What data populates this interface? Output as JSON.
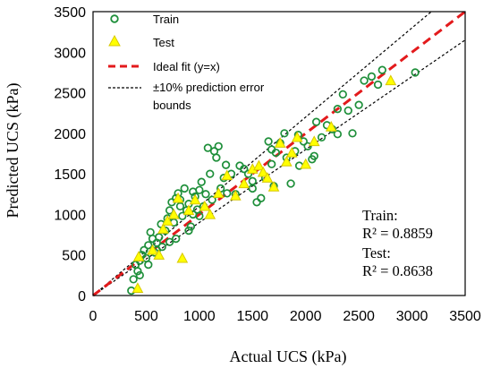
{
  "chart_data": {
    "type": "scatter",
    "xlabel": "Actual UCS (kPa)",
    "ylabel": "Predicted UCS (kPa)",
    "xlim": [
      0,
      3500
    ],
    "ylim": [
      0,
      3500
    ],
    "x_ticks": [
      0,
      500,
      1000,
      1500,
      2000,
      2500,
      3000,
      3500
    ],
    "y_ticks": [
      0,
      500,
      1000,
      1500,
      2000,
      2500,
      3000,
      3500
    ],
    "grid": false,
    "legend_position": "top-left",
    "colors": {
      "train": "#1e8f3a",
      "test_fill": "#ffff00",
      "test_edge": "#d8c800",
      "ideal": "#e31a1c",
      "bounds": "#000000"
    },
    "legend": {
      "train": "Train",
      "test": "Test",
      "ideal": "Ideal fit (y=x)",
      "bounds_line1": "±10% prediction error",
      "bounds_line2": "bounds"
    },
    "annotations": {
      "train_label": "Train:",
      "train_r2": "R² = 0.8859",
      "test_label": "Test:",
      "test_r2": "R² = 0.8638"
    },
    "reference_lines": [
      {
        "label": "Ideal fit (y=x)",
        "slope": 1.0
      },
      {
        "label": "+10%",
        "slope": 1.1
      },
      {
        "label": "-10%",
        "slope": 0.9
      }
    ],
    "series": [
      {
        "name": "Train",
        "marker": "circle",
        "points": [
          [
            360,
            60
          ],
          [
            380,
            200
          ],
          [
            400,
            380
          ],
          [
            420,
            300
          ],
          [
            440,
            430
          ],
          [
            460,
            500
          ],
          [
            480,
            560
          ],
          [
            500,
            460
          ],
          [
            520,
            620
          ],
          [
            540,
            780
          ],
          [
            560,
            700
          ],
          [
            580,
            530
          ],
          [
            600,
            650
          ],
          [
            620,
            720
          ],
          [
            640,
            880
          ],
          [
            650,
            600
          ],
          [
            680,
            800
          ],
          [
            700,
            950
          ],
          [
            720,
            1050
          ],
          [
            740,
            1150
          ],
          [
            760,
            900
          ],
          [
            780,
            1200
          ],
          [
            800,
            1260
          ],
          [
            820,
            1100
          ],
          [
            840,
            980
          ],
          [
            860,
            1320
          ],
          [
            880,
            1050
          ],
          [
            900,
            800
          ],
          [
            920,
            850
          ],
          [
            940,
            1000
          ],
          [
            960,
            1220
          ],
          [
            980,
            1060
          ],
          [
            1000,
            1300
          ],
          [
            1020,
            1400
          ],
          [
            1040,
            1100
          ],
          [
            1060,
            1250
          ],
          [
            1080,
            1820
          ],
          [
            1100,
            1500
          ],
          [
            1120,
            1180
          ],
          [
            1140,
            1780
          ],
          [
            1160,
            1700
          ],
          [
            1180,
            1840
          ],
          [
            1200,
            1320
          ],
          [
            1230,
            1450
          ],
          [
            1260,
            1260
          ],
          [
            1300,
            1500
          ],
          [
            1340,
            1250
          ],
          [
            1380,
            1600
          ],
          [
            1420,
            1560
          ],
          [
            1460,
            1500
          ],
          [
            1500,
            1320
          ],
          [
            1540,
            1150
          ],
          [
            1580,
            1200
          ],
          [
            1620,
            1450
          ],
          [
            1650,
            1900
          ],
          [
            1680,
            1620
          ],
          [
            1700,
            1350
          ],
          [
            1720,
            1760
          ],
          [
            1760,
            1880
          ],
          [
            1800,
            2000
          ],
          [
            1820,
            1700
          ],
          [
            1860,
            1380
          ],
          [
            1900,
            1780
          ],
          [
            1940,
            1600
          ],
          [
            1980,
            1900
          ],
          [
            2020,
            1840
          ],
          [
            2060,
            1680
          ],
          [
            2100,
            2140
          ],
          [
            2150,
            1950
          ],
          [
            2200,
            2100
          ],
          [
            2250,
            2050
          ],
          [
            2300,
            1990
          ],
          [
            2350,
            2480
          ],
          [
            2400,
            2280
          ],
          [
            2440,
            2000
          ],
          [
            2500,
            2350
          ],
          [
            2550,
            2650
          ],
          [
            2620,
            2700
          ],
          [
            2680,
            2600
          ],
          [
            2720,
            2780
          ],
          [
            3030,
            2750
          ],
          [
            900,
            1130
          ],
          [
            940,
            1280
          ],
          [
            1000,
            980
          ],
          [
            600,
            560
          ],
          [
            720,
            660
          ],
          [
            780,
            700
          ],
          [
            820,
            1180
          ],
          [
            1250,
            1610
          ],
          [
            1500,
            1410
          ],
          [
            1680,
            1800
          ],
          [
            1930,
            1980
          ],
          [
            2080,
            1720
          ],
          [
            2300,
            2300
          ],
          [
            440,
            250
          ],
          [
            520,
            380
          ]
        ]
      },
      {
        "name": "Test",
        "marker": "triangle",
        "points": [
          [
            420,
            90
          ],
          [
            430,
            480
          ],
          [
            560,
            560
          ],
          [
            620,
            500
          ],
          [
            660,
            820
          ],
          [
            700,
            920
          ],
          [
            760,
            1000
          ],
          [
            800,
            1200
          ],
          [
            840,
            460
          ],
          [
            900,
            1050
          ],
          [
            960,
            1180
          ],
          [
            1050,
            1100
          ],
          [
            1100,
            1000
          ],
          [
            1180,
            1260
          ],
          [
            1260,
            1480
          ],
          [
            1340,
            1230
          ],
          [
            1420,
            1380
          ],
          [
            1500,
            1560
          ],
          [
            1560,
            1600
          ],
          [
            1600,
            1520
          ],
          [
            1640,
            1450
          ],
          [
            1700,
            1340
          ],
          [
            1760,
            1880
          ],
          [
            1820,
            1650
          ],
          [
            1870,
            1760
          ],
          [
            1920,
            1950
          ],
          [
            2000,
            1620
          ],
          [
            2080,
            1900
          ],
          [
            2240,
            2080
          ],
          [
            2800,
            2650
          ]
        ]
      }
    ]
  }
}
